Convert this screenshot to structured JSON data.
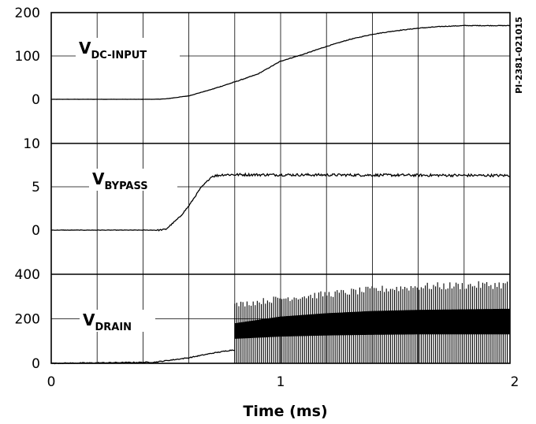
{
  "chart_data": {
    "type": "line",
    "figure_code": "PI-2381-021015",
    "xlabel": "Time (ms)",
    "x_ticks": [
      "0",
      "1",
      "2"
    ],
    "xlim": [
      0,
      2
    ],
    "panels": [
      {
        "series_name": "V",
        "series_subscript": "DC-INPUT",
        "ylim": [
          0,
          200
        ],
        "y_ticks": [
          "200",
          "100",
          "0"
        ],
        "points": [
          [
            0,
            0
          ],
          [
            0.45,
            0
          ],
          [
            0.5,
            1
          ],
          [
            0.6,
            8
          ],
          [
            0.7,
            23
          ],
          [
            0.8,
            40
          ],
          [
            0.9,
            58
          ],
          [
            1.0,
            88
          ],
          [
            1.1,
            104
          ],
          [
            1.2,
            122
          ],
          [
            1.3,
            138
          ],
          [
            1.4,
            150
          ],
          [
            1.5,
            158
          ],
          [
            1.6,
            164
          ],
          [
            1.7,
            168
          ],
          [
            1.8,
            170
          ],
          [
            2.0,
            170
          ]
        ],
        "noise": 0.7
      },
      {
        "series_name": "V",
        "series_subscript": "BYPASS",
        "ylim": [
          0,
          10
        ],
        "y_ticks": [
          "10",
          "5",
          "0"
        ],
        "points": [
          [
            0,
            0
          ],
          [
            0.47,
            0
          ],
          [
            0.5,
            0.1
          ],
          [
            0.56,
            1.5
          ],
          [
            0.6,
            2.8
          ],
          [
            0.65,
            4.8
          ],
          [
            0.7,
            6.2
          ],
          [
            0.75,
            6.4
          ],
          [
            2.0,
            6.3
          ]
        ],
        "noise": 0.15
      },
      {
        "series_name": "V",
        "series_subscript": "DRAIN",
        "ylim": [
          0,
          400
        ],
        "y_ticks": [
          "400",
          "200",
          "0"
        ],
        "points": [
          [
            0,
            0
          ],
          [
            0.45,
            5
          ],
          [
            0.6,
            25
          ],
          [
            0.7,
            45
          ],
          [
            0.79,
            60
          ]
        ],
        "switching_start": 0.8,
        "envelope_peak": [
          [
            0.8,
            270
          ],
          [
            1.0,
            300
          ],
          [
            1.2,
            320
          ],
          [
            1.4,
            340
          ],
          [
            1.6,
            355
          ],
          [
            2.0,
            365
          ]
        ],
        "envelope_band_high": [
          [
            0.8,
            180
          ],
          [
            1.0,
            210
          ],
          [
            1.2,
            225
          ],
          [
            1.4,
            235
          ],
          [
            1.6,
            240
          ],
          [
            2.0,
            245
          ]
        ],
        "envelope_band_low": [
          [
            0.8,
            110
          ],
          [
            1.0,
            120
          ],
          [
            1.2,
            125
          ],
          [
            1.4,
            128
          ],
          [
            1.6,
            130
          ],
          [
            2.0,
            130
          ]
        ]
      }
    ]
  }
}
